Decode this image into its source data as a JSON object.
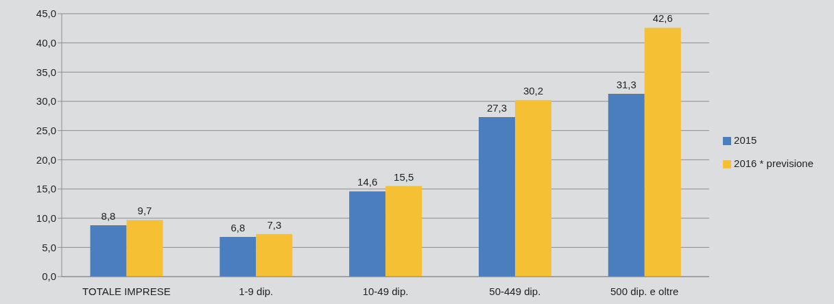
{
  "chart_data": {
    "type": "bar",
    "categories": [
      "TOTALE IMPRESE",
      "1-9 dip.",
      "10-49 dip.",
      "50-449 dip.",
      "500 dip. e oltre"
    ],
    "series": [
      {
        "name": "2015",
        "color": "#4a7ebf",
        "values": [
          8.8,
          6.8,
          14.6,
          27.3,
          31.3
        ],
        "value_labels": [
          "8,8",
          "6,8",
          "14,6",
          "27,3",
          "31,3"
        ]
      },
      {
        "name": "2016 * previsione",
        "color": "#f5c034",
        "values": [
          9.7,
          7.3,
          15.5,
          30.2,
          42.6
        ],
        "value_labels": [
          "9,7",
          "7,3",
          "15,5",
          "30,2",
          "42,6"
        ]
      }
    ],
    "ylim": [
      0,
      45
    ],
    "yticks": [
      {
        "value": 0,
        "label": "0,0"
      },
      {
        "value": 5,
        "label": "5,0"
      },
      {
        "value": 10,
        "label": "10,0"
      },
      {
        "value": 15,
        "label": "15,0"
      },
      {
        "value": 20,
        "label": "20,0"
      },
      {
        "value": 25,
        "label": "25,0"
      },
      {
        "value": 30,
        "label": "30,0"
      },
      {
        "value": 35,
        "label": "35,0"
      },
      {
        "value": 40,
        "label": "40,0"
      },
      {
        "value": 45,
        "label": "45,0"
      }
    ],
    "grid": "y",
    "legend": "right"
  }
}
